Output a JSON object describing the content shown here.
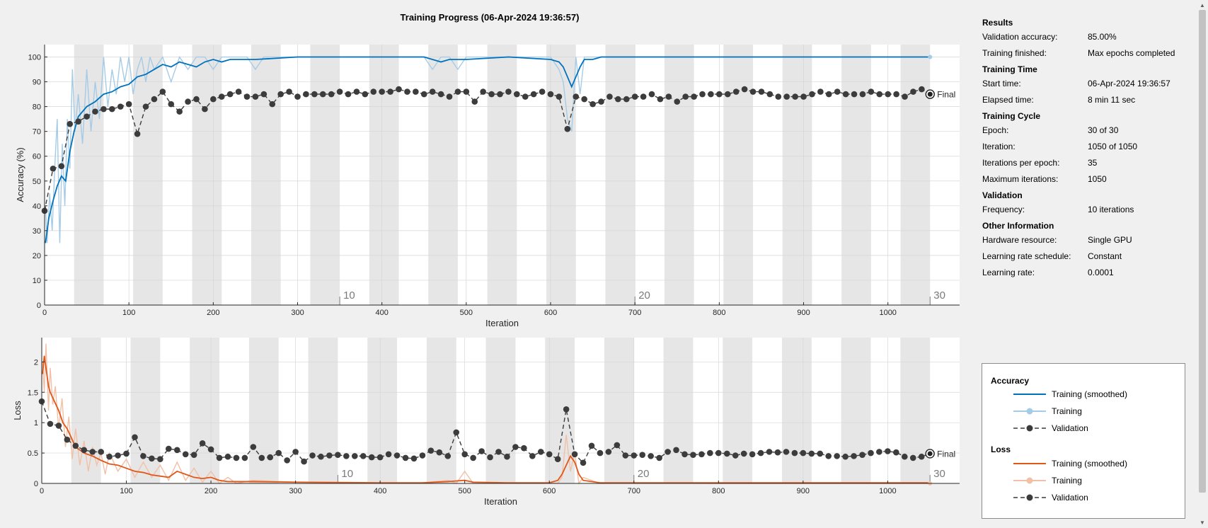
{
  "title": "Training Progress (06-Apr-2024 19:36:57)",
  "results": {
    "heading": "Results",
    "rows": [
      {
        "label": "Validation accuracy:",
        "value": "85.00%"
      },
      {
        "label": "Training finished:",
        "value": "Max epochs completed"
      }
    ]
  },
  "training_time": {
    "heading": "Training Time",
    "rows": [
      {
        "label": "Start time:",
        "value": "06-Apr-2024 19:36:57"
      },
      {
        "label": "Elapsed time:",
        "value": "8 min 11 sec"
      }
    ]
  },
  "training_cycle": {
    "heading": "Training Cycle",
    "rows": [
      {
        "label": "Epoch:",
        "value": "30 of 30"
      },
      {
        "label": "Iteration:",
        "value": "1050 of 1050"
      },
      {
        "label": "Iterations per epoch:",
        "value": "35"
      },
      {
        "label": "Maximum iterations:",
        "value": "1050"
      }
    ]
  },
  "validation": {
    "heading": "Validation",
    "rows": [
      {
        "label": "Frequency:",
        "value": "10 iterations"
      }
    ]
  },
  "other_info": {
    "heading": "Other Information",
    "rows": [
      {
        "label": "Hardware resource:",
        "value": "Single GPU"
      },
      {
        "label": "Learning rate schedule:",
        "value": "Constant"
      },
      {
        "label": "Learning rate:",
        "value": "0.0001"
      }
    ]
  },
  "legend": {
    "accuracy_title": "Accuracy",
    "loss_title": "Loss",
    "items": [
      {
        "label": "Training (smoothed)"
      },
      {
        "label": "Training"
      },
      {
        "label": "Validation"
      }
    ]
  },
  "colors": {
    "acc_smoothed": "#0072bd",
    "acc_raw": "#a6cbe6",
    "loss_smoothed": "#e0571a",
    "loss_raw": "#f2c0a6",
    "validation": "#3c3c3c",
    "epoch_band": "#e6e6e6",
    "plot_bg": "#ffffff"
  },
  "chart_data": [
    {
      "type": "line",
      "ylabel": "Accuracy (%)",
      "xlabel": "Iteration",
      "xlim": [
        0,
        1085
      ],
      "ylim": [
        0,
        105
      ],
      "xticks": [
        0,
        100,
        200,
        300,
        400,
        500,
        600,
        700,
        800,
        900,
        1000
      ],
      "yticks": [
        0,
        10,
        20,
        30,
        40,
        50,
        60,
        70,
        80,
        90,
        100
      ],
      "grid": true,
      "iterations_per_epoch": 35,
      "epoch_labels": [
        "10",
        "20",
        "30"
      ],
      "final_label": "Final",
      "final_value": 85,
      "smoothed": {
        "name": "Training (smoothed)",
        "x": [
          1,
          5,
          10,
          15,
          20,
          25,
          30,
          35,
          40,
          50,
          60,
          70,
          80,
          90,
          100,
          110,
          120,
          130,
          140,
          150,
          160,
          170,
          180,
          190,
          200,
          210,
          220,
          250,
          300,
          400,
          450,
          470,
          480,
          500,
          550,
          600,
          610,
          615,
          620,
          625,
          630,
          635,
          640,
          650,
          660,
          680,
          700,
          800,
          900,
          1000,
          1050
        ],
        "y": [
          25,
          35,
          42,
          48,
          52,
          50,
          62,
          70,
          76,
          80,
          82,
          85,
          86,
          88,
          89,
          92,
          93,
          95,
          97,
          96,
          98,
          97,
          96,
          98,
          99,
          98,
          99,
          99,
          100,
          100,
          100,
          98,
          99,
          99,
          100,
          99,
          98,
          96,
          92,
          88,
          92,
          96,
          99,
          99,
          100,
          100,
          100,
          100,
          100,
          100,
          100
        ]
      },
      "raw": {
        "name": "Training",
        "x": [
          1,
          3,
          6,
          9,
          12,
          15,
          18,
          21,
          24,
          27,
          30,
          33,
          36,
          40,
          45,
          50,
          55,
          60,
          65,
          70,
          75,
          80,
          85,
          90,
          95,
          100,
          105,
          110,
          115,
          120,
          125,
          130,
          140,
          150,
          160,
          170,
          180,
          190,
          200,
          210,
          220,
          230,
          240,
          250,
          260,
          270,
          280,
          300,
          350,
          400,
          450,
          460,
          470,
          480,
          490,
          500,
          510,
          550,
          600,
          610,
          615,
          620,
          625,
          630,
          635,
          640,
          650,
          660,
          700,
          800,
          900,
          1000,
          1050
        ],
        "y": [
          40,
          25,
          45,
          30,
          55,
          75,
          25,
          65,
          40,
          75,
          55,
          95,
          70,
          85,
          65,
          95,
          70,
          90,
          75,
          100,
          80,
          95,
          85,
          100,
          90,
          100,
          85,
          95,
          100,
          90,
          100,
          95,
          100,
          90,
          100,
          95,
          100,
          100,
          95,
          100,
          100,
          100,
          100,
          95,
          100,
          100,
          100,
          100,
          100,
          100,
          100,
          95,
          100,
          100,
          95,
          100,
          100,
          100,
          100,
          95,
          90,
          75,
          70,
          100,
          85,
          100,
          100,
          100,
          100,
          100,
          100,
          100,
          100
        ]
      },
      "validation": {
        "name": "Validation",
        "x": [
          0,
          10,
          20,
          30,
          40,
          50,
          60,
          70,
          80,
          90,
          100,
          110,
          120,
          130,
          140,
          150,
          160,
          170,
          180,
          190,
          200,
          210,
          220,
          230,
          240,
          250,
          260,
          270,
          280,
          290,
          300,
          310,
          320,
          330,
          340,
          350,
          360,
          370,
          380,
          390,
          400,
          410,
          420,
          430,
          440,
          450,
          460,
          470,
          480,
          490,
          500,
          510,
          520,
          530,
          540,
          550,
          560,
          570,
          580,
          590,
          600,
          610,
          620,
          630,
          640,
          650,
          660,
          670,
          680,
          690,
          700,
          710,
          720,
          730,
          740,
          750,
          760,
          770,
          780,
          790,
          800,
          810,
          820,
          830,
          840,
          850,
          860,
          870,
          880,
          890,
          900,
          910,
          920,
          930,
          940,
          950,
          960,
          970,
          980,
          990,
          1000,
          1010,
          1020,
          1030,
          1040,
          1050
        ],
        "y": [
          38,
          55,
          56,
          73,
          74,
          76,
          78,
          79,
          79,
          80,
          81,
          69,
          80,
          83,
          86,
          81,
          78,
          82,
          83,
          79,
          83,
          84,
          85,
          86,
          84,
          84,
          85,
          81,
          85,
          86,
          84,
          85,
          85,
          85,
          85,
          86,
          85,
          86,
          85,
          86,
          86,
          86,
          87,
          86,
          86,
          85,
          86,
          85,
          84,
          86,
          86,
          82,
          86,
          85,
          85,
          86,
          85,
          84,
          85,
          86,
          85,
          84,
          71,
          84,
          83,
          81,
          82,
          84,
          83,
          83,
          84,
          84,
          85,
          83,
          84,
          82,
          84,
          84,
          85,
          85,
          85,
          85,
          86,
          87,
          86,
          86,
          85,
          84,
          84,
          84,
          84,
          85,
          86,
          85,
          86,
          85,
          85,
          85,
          86,
          85,
          85,
          85,
          84,
          86,
          87,
          85
        ]
      }
    },
    {
      "type": "line",
      "ylabel": "Loss",
      "xlabel": "Iteration",
      "xlim": [
        0,
        1085
      ],
      "ylim": [
        0,
        2.4
      ],
      "xticks": [
        0,
        100,
        200,
        300,
        400,
        500,
        600,
        700,
        800,
        900,
        1000
      ],
      "yticks": [
        0,
        0.5,
        1,
        1.5,
        2
      ],
      "ytick_labels": [
        "0",
        "0.5",
        "1",
        "1.5",
        "2"
      ],
      "grid": true,
      "iterations_per_epoch": 35,
      "epoch_labels": [
        "10",
        "20",
        "30"
      ],
      "final_label": "Final",
      "final_value": 0.49,
      "smoothed": {
        "name": "Training (smoothed)",
        "x": [
          1,
          3,
          5,
          8,
          10,
          15,
          20,
          25,
          30,
          35,
          40,
          50,
          60,
          70,
          80,
          90,
          100,
          110,
          120,
          130,
          140,
          150,
          160,
          170,
          180,
          190,
          200,
          210,
          220,
          250,
          300,
          400,
          450,
          480,
          500,
          510,
          550,
          600,
          610,
          615,
          620,
          625,
          630,
          635,
          640,
          660,
          700,
          800,
          900,
          1000,
          1050
        ],
        "y": [
          1.8,
          2.1,
          1.9,
          1.6,
          1.5,
          1.35,
          1.2,
          1.0,
          0.9,
          0.75,
          0.6,
          0.5,
          0.45,
          0.38,
          0.32,
          0.3,
          0.25,
          0.2,
          0.18,
          0.14,
          0.12,
          0.1,
          0.2,
          0.15,
          0.1,
          0.08,
          0.1,
          0.05,
          0.03,
          0.03,
          0.02,
          0.01,
          0.01,
          0.03,
          0.05,
          0.02,
          0.01,
          0.01,
          0.05,
          0.15,
          0.3,
          0.45,
          0.35,
          0.15,
          0.05,
          0.01,
          0.01,
          0.01,
          0.01,
          0.01,
          0.01
        ]
      },
      "raw": {
        "name": "Training",
        "x": [
          1,
          3,
          5,
          8,
          10,
          13,
          16,
          20,
          24,
          28,
          32,
          36,
          40,
          45,
          50,
          55,
          60,
          65,
          70,
          75,
          80,
          90,
          100,
          110,
          120,
          130,
          140,
          150,
          160,
          170,
          180,
          190,
          200,
          210,
          220,
          230,
          250,
          300,
          400,
          450,
          480,
          490,
          500,
          510,
          550,
          600,
          610,
          615,
          620,
          625,
          630,
          635,
          640,
          660,
          700,
          800,
          900,
          1000,
          1050
        ],
        "y": [
          2.0,
          1.5,
          2.3,
          1.2,
          1.9,
          1.3,
          1.6,
          0.9,
          1.4,
          0.6,
          1.1,
          0.4,
          0.9,
          0.3,
          0.7,
          0.2,
          0.6,
          0.3,
          0.5,
          0.15,
          0.5,
          0.2,
          0.4,
          0.1,
          0.35,
          0.1,
          0.3,
          0.05,
          0.35,
          0.05,
          0.25,
          0.02,
          0.2,
          0.0,
          0.1,
          0.0,
          0.05,
          0.02,
          0.01,
          0.01,
          0.05,
          0.0,
          0.2,
          0.0,
          0.01,
          0.01,
          0.0,
          0.1,
          0.8,
          0.2,
          0.5,
          0.0,
          0.1,
          0.0,
          0.01,
          0.0,
          0.0,
          0.0,
          0.0
        ]
      },
      "validation": {
        "name": "Validation",
        "x": [
          0,
          10,
          20,
          30,
          40,
          50,
          60,
          70,
          80,
          90,
          100,
          110,
          120,
          130,
          140,
          150,
          160,
          170,
          180,
          190,
          200,
          210,
          220,
          230,
          240,
          250,
          260,
          270,
          280,
          290,
          300,
          310,
          320,
          330,
          340,
          350,
          360,
          370,
          380,
          390,
          400,
          410,
          420,
          430,
          440,
          450,
          460,
          470,
          480,
          490,
          500,
          510,
          520,
          530,
          540,
          550,
          560,
          570,
          580,
          590,
          600,
          610,
          620,
          630,
          640,
          650,
          660,
          670,
          680,
          690,
          700,
          710,
          720,
          730,
          740,
          750,
          760,
          770,
          780,
          790,
          800,
          810,
          820,
          830,
          840,
          850,
          860,
          870,
          880,
          890,
          900,
          910,
          920,
          930,
          940,
          950,
          960,
          970,
          980,
          990,
          1000,
          1010,
          1020,
          1030,
          1040,
          1050
        ],
        "y": [
          1.35,
          0.98,
          0.95,
          0.72,
          0.62,
          0.55,
          0.52,
          0.52,
          0.44,
          0.46,
          0.49,
          0.76,
          0.45,
          0.41,
          0.4,
          0.57,
          0.55,
          0.48,
          0.47,
          0.66,
          0.56,
          0.42,
          0.44,
          0.42,
          0.42,
          0.6,
          0.42,
          0.43,
          0.5,
          0.38,
          0.52,
          0.36,
          0.46,
          0.44,
          0.46,
          0.47,
          0.45,
          0.45,
          0.45,
          0.43,
          0.43,
          0.48,
          0.46,
          0.42,
          0.41,
          0.46,
          0.54,
          0.51,
          0.45,
          0.84,
          0.48,
          0.42,
          0.53,
          0.43,
          0.52,
          0.44,
          0.6,
          0.58,
          0.45,
          0.52,
          0.48,
          0.4,
          1.22,
          0.48,
          0.34,
          0.62,
          0.5,
          0.52,
          0.63,
          0.46,
          0.46,
          0.47,
          0.45,
          0.42,
          0.52,
          0.55,
          0.48,
          0.47,
          0.48,
          0.5,
          0.5,
          0.49,
          0.46,
          0.49,
          0.48,
          0.5,
          0.52,
          0.51,
          0.52,
          0.5,
          0.5,
          0.49,
          0.49,
          0.45,
          0.45,
          0.44,
          0.45,
          0.47,
          0.5,
          0.52,
          0.53,
          0.51,
          0.44,
          0.42,
          0.44,
          0.49
        ]
      }
    }
  ]
}
